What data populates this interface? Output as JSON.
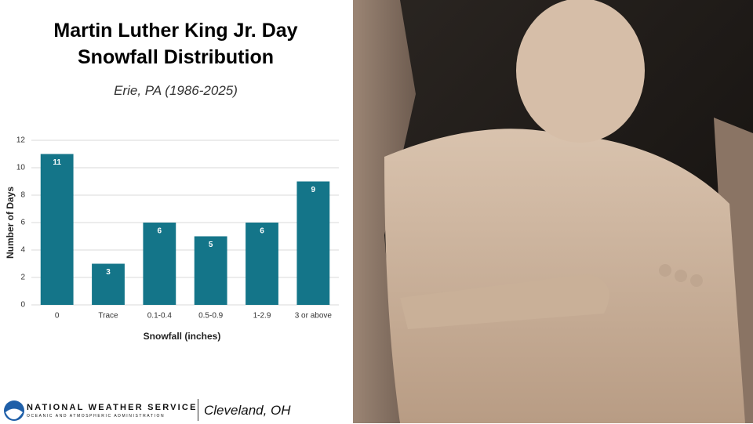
{
  "chart_data": {
    "type": "bar",
    "title": "Martin Luther King Jr. Day Snowfall Distribution",
    "subtitle": "Erie, PA (1986-2025)",
    "x_label": "Snowfall (inches)",
    "y_label": "Number of Days",
    "categories": [
      "0",
      "Trace",
      "0.1-0.4",
      "0.5-0.9",
      "1-2.9",
      "3 or above"
    ],
    "values": [
      11,
      3,
      6,
      5,
      6,
      9
    ],
    "color": "#147589",
    "ylim": [
      0,
      12
    ],
    "yticks": [
      0,
      2,
      4,
      6,
      8,
      10,
      12
    ],
    "grid": true
  },
  "footer": {
    "agency": "NATIONAL WEATHER SERVICE",
    "parent": "OCEANIC AND ATMOSPHERIC ADMINISTRATION",
    "office": "Cleveland, OH"
  }
}
